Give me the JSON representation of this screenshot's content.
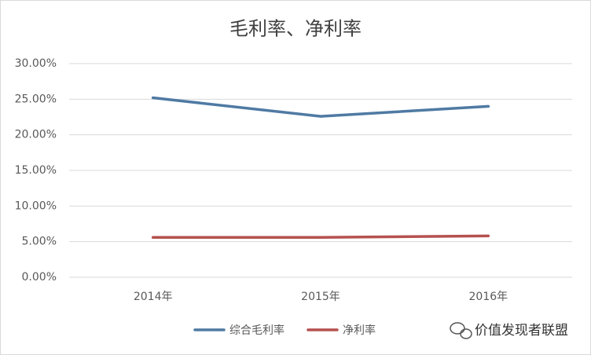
{
  "chart_data": {
    "type": "line",
    "title": "毛利率、净利率",
    "categories": [
      "2014年",
      "2015年",
      "2016年"
    ],
    "series": [
      {
        "name": "综合毛利率",
        "color": "#4f7aa3",
        "values": [
          25.2,
          22.6,
          24.0
        ]
      },
      {
        "name": "净利率",
        "color": "#b5514f",
        "values": [
          5.6,
          5.6,
          5.8
        ]
      }
    ],
    "ylim": [
      0,
      30
    ],
    "yticks": [
      {
        "value": 0,
        "label": "0.00%"
      },
      {
        "value": 5,
        "label": "5.00%"
      },
      {
        "value": 10,
        "label": "10.00%"
      },
      {
        "value": 15,
        "label": "15.00%"
      },
      {
        "value": 20,
        "label": "20.00%"
      },
      {
        "value": 25,
        "label": "25.00%"
      },
      {
        "value": 30,
        "label": "30.00%"
      }
    ],
    "grid": true,
    "legend": "bottom",
    "watermark": "价值发现者联盟"
  }
}
